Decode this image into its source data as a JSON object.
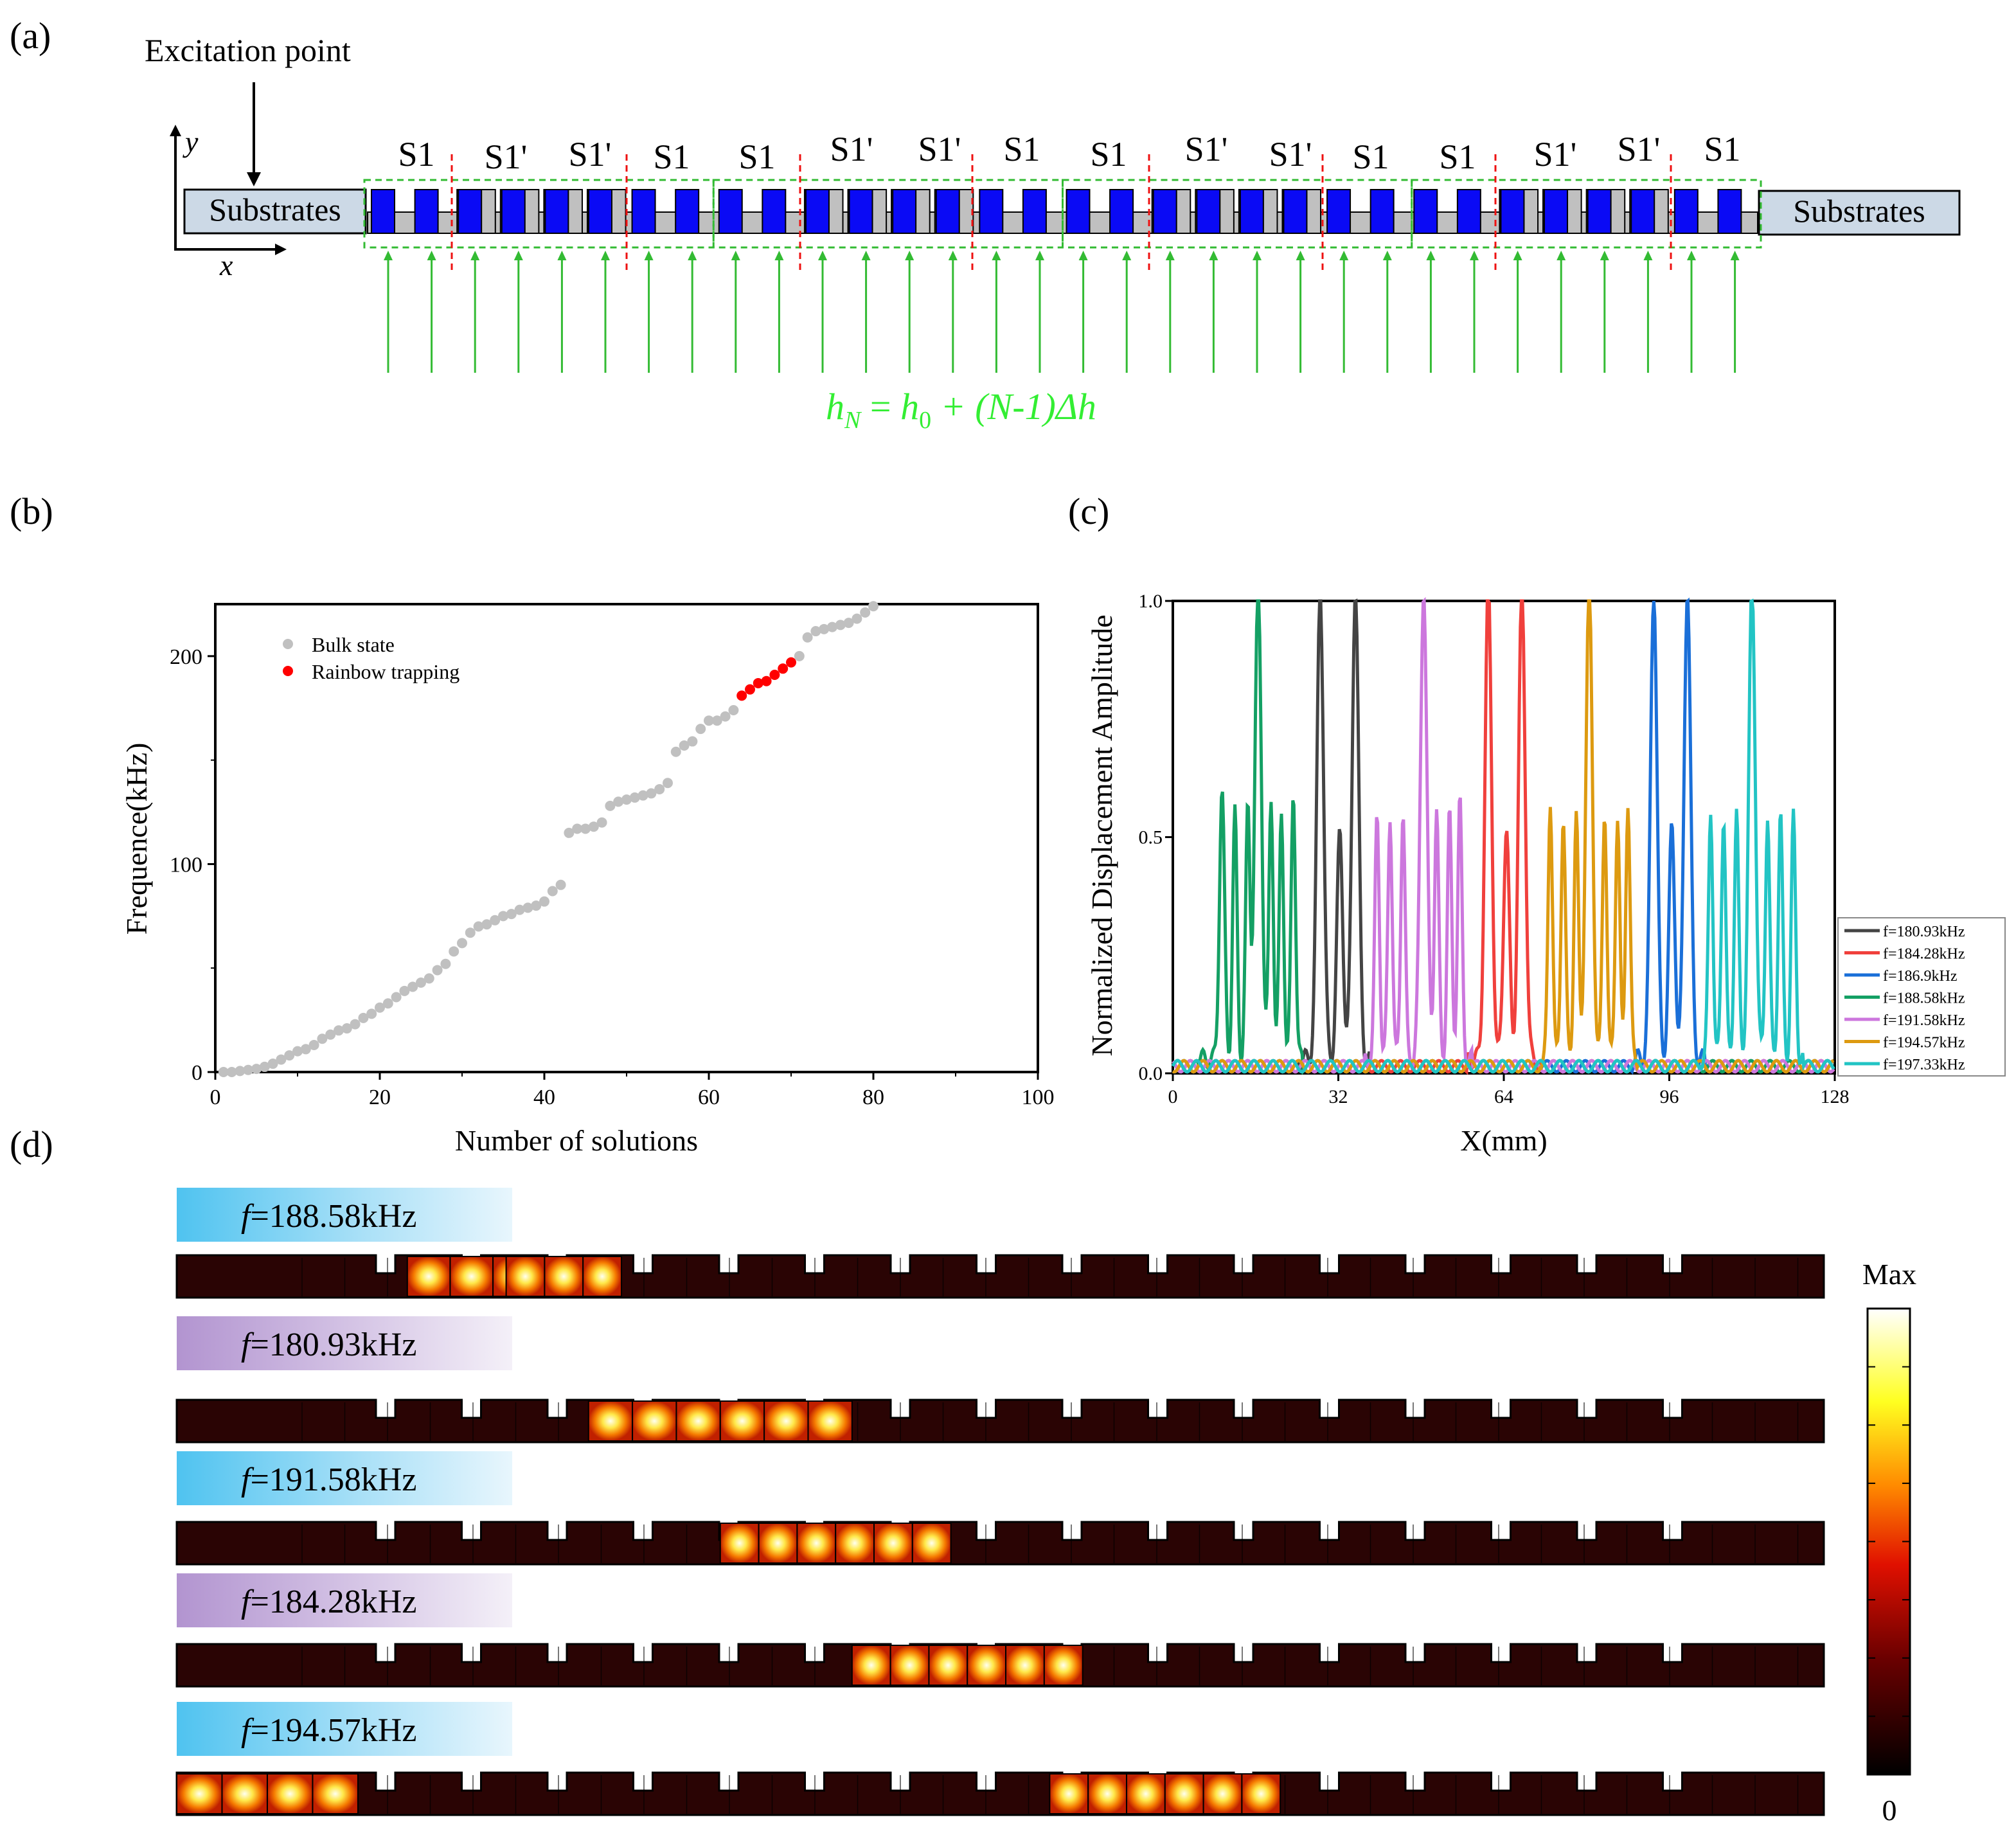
{
  "panels": {
    "a": {
      "label": "(a)",
      "excitation_label": "Excitation point",
      "axis_y": "y",
      "axis_x": "x",
      "substrate_left": "Substrates",
      "substrate_right": "Substrates",
      "segment_labels": [
        "S1",
        "S1'",
        "S1'",
        "S1",
        "S1",
        "S1'",
        "S1'",
        "S1",
        "S1",
        "S1'",
        "S1'",
        "S1",
        "S1",
        "S1'",
        "S1'",
        "S1"
      ],
      "formula": {
        "h": "h",
        "sub_N": "N",
        "eq": " = ",
        "h0": "h",
        "sub_0": "0",
        "rest": " + (N-1)Δh"
      },
      "colors": {
        "block": "#0a0af5",
        "gray": "#c0c0c0",
        "green": "#33bb33",
        "red_dash": "#ee1111",
        "formula": "#33ee33",
        "substrate": "#ccd9e6"
      }
    },
    "b": {
      "label": "(b)",
      "legend": [
        "Bulk state",
        "Rainbow trapping"
      ],
      "colors": {
        "bulk": "#c0c0c0",
        "rainbow": "#ff0000"
      }
    },
    "c": {
      "label": "(c)",
      "colors": [
        "#444444",
        "#f0403c",
        "#1a6fd8",
        "#14a064",
        "#cc77dd",
        "#dd9a10",
        "#22c4c4"
      ]
    },
    "d": {
      "label": "(d)",
      "colorbar_max": "Max",
      "colorbar_min": "0",
      "strips": [
        {
          "prefix": "f",
          "text": "=188.58kHz",
          "tag": "blue",
          "hot": [
            [
              0.14,
              0.27
            ],
            [
              0.2,
              0.27
            ]
          ]
        },
        {
          "prefix": "f",
          "text": "=180.93kHz",
          "tag": "purple",
          "hot": [
            [
              0.25,
              0.41
            ]
          ]
        },
        {
          "prefix": "f",
          "text": "=191.58kHz",
          "tag": "blue",
          "hot": [
            [
              0.33,
              0.47
            ]
          ]
        },
        {
          "prefix": "f",
          "text": "=184.28kHz",
          "tag": "purple",
          "hot": [
            [
              0.41,
              0.55
            ]
          ]
        },
        {
          "prefix": "f",
          "text": "=194.57kHz",
          "tag": "blue",
          "hot": [
            [
              0.0,
              0.11
            ],
            [
              0.53,
              0.67
            ]
          ]
        }
      ]
    }
  },
  "chart_data": [
    {
      "type": "scatter",
      "title": "",
      "xlabel": "Number of solutions",
      "ylabel": "Frequence(kHz)",
      "xlim": [
        0,
        100
      ],
      "ylim": [
        0,
        225
      ],
      "xticks": [
        0,
        20,
        40,
        60,
        80,
        100
      ],
      "yticks": [
        0,
        100,
        200
      ],
      "series": [
        {
          "name": "Bulk state",
          "x": [
            1,
            2,
            3,
            4,
            5,
            6,
            7,
            8,
            9,
            10,
            11,
            12,
            13,
            14,
            15,
            16,
            17,
            18,
            19,
            20,
            21,
            22,
            23,
            24,
            25,
            26,
            27,
            28,
            29,
            30,
            31,
            32,
            33,
            34,
            35,
            36,
            37,
            38,
            39,
            40,
            41,
            42,
            43,
            44,
            45,
            46,
            47,
            48,
            49,
            50,
            51,
            52,
            53,
            54,
            55,
            56,
            57,
            58,
            59,
            60,
            61,
            62,
            63,
            71,
            72,
            73,
            74,
            75,
            76,
            77,
            78,
            79,
            80
          ],
          "y": [
            0,
            0,
            0.5,
            1,
            1.5,
            2.5,
            4,
            6,
            8,
            10,
            11,
            13,
            16,
            18,
            20,
            21,
            23,
            26,
            28,
            31,
            33,
            36,
            39,
            41,
            43,
            45,
            49,
            52,
            58,
            62,
            67,
            70,
            71,
            73,
            75,
            76,
            78,
            79,
            80,
            82,
            87,
            90,
            115,
            117,
            117,
            118,
            120,
            128,
            130,
            131,
            132,
            133,
            134,
            136,
            139,
            154,
            157,
            159,
            165,
            169,
            169,
            171,
            174,
            200,
            209,
            212,
            213,
            214,
            215,
            216,
            218,
            221,
            224
          ]
        },
        {
          "name": "Rainbow trapping",
          "x": [
            64,
            65,
            66,
            67,
            68,
            69,
            70
          ],
          "y": [
            181,
            184,
            187,
            188,
            191,
            194,
            197
          ]
        }
      ]
    },
    {
      "type": "line",
      "title": "",
      "xlabel": "X(mm)",
      "ylabel": "Normalized Displacement Amplitude",
      "xlim": [
        0,
        128
      ],
      "ylim": [
        0,
        1
      ],
      "xticks": [
        0,
        32,
        64,
        96,
        128
      ],
      "yticks": [
        0.0,
        0.5,
        1.0
      ],
      "series": [
        {
          "name": "f=180.93kHz",
          "peaks": [
            [
              28.5,
              1.0,
              0.9
            ],
            [
              32.3,
              0.48,
              0.8
            ],
            [
              35.3,
              1.0,
              0.9
            ]
          ],
          "region": [
            24,
            38
          ]
        },
        {
          "name": "f=184.28kHz",
          "peaks": [
            [
              61,
              1.0,
              0.9
            ],
            [
              64.5,
              0.49,
              0.8
            ],
            [
              67.5,
              1.0,
              0.9
            ]
          ],
          "region": [
            57,
            71
          ]
        },
        {
          "name": "f=186.9kHz",
          "peaks": [
            [
              93,
              1.0,
              0.9
            ],
            [
              96.5,
              0.49,
              0.8
            ],
            [
              99.5,
              1.0,
              0.9
            ]
          ],
          "region": [
            89,
            103
          ]
        },
        {
          "name": "f=188.58kHz",
          "peaks": [
            [
              9.5,
              0.57,
              0.7
            ],
            [
              12,
              0.52,
              0.6
            ],
            [
              14.5,
              0.53,
              0.6
            ],
            [
              16.5,
              1.0,
              0.9
            ],
            [
              19,
              0.55,
              0.6
            ],
            [
              21,
              0.52,
              0.6
            ],
            [
              23.3,
              0.57,
              0.6
            ]
          ],
          "region": [
            5,
            25
          ]
        },
        {
          "name": "f=191.58kHz",
          "peaks": [
            [
              39.5,
              0.52,
              0.6
            ],
            [
              42,
              0.52,
              0.6
            ],
            [
              44.5,
              0.53,
              0.6
            ],
            [
              48.5,
              1.0,
              0.9
            ],
            [
              51,
              0.53,
              0.6
            ],
            [
              53.5,
              0.52,
              0.6
            ],
            [
              55.5,
              0.55,
              0.6
            ]
          ],
          "region": [
            37,
            58
          ]
        },
        {
          "name": "f=194.57kHz",
          "peaks": [
            [
              73,
              0.55,
              0.6
            ],
            [
              75.5,
              0.52,
              0.6
            ],
            [
              78,
              0.52,
              0.6
            ],
            [
              80.5,
              1.0,
              0.9
            ],
            [
              83.5,
              0.53,
              0.6
            ],
            [
              86,
              0.52,
              0.6
            ],
            [
              88,
              0.55,
              0.6
            ]
          ],
          "region": [
            71,
            90
          ]
        },
        {
          "name": "f=197.33kHz",
          "peaks": [
            [
              104,
              0.53,
              0.6
            ],
            [
              106.5,
              0.52,
              0.6
            ],
            [
              109,
              0.53,
              0.6
            ],
            [
              112,
              1.0,
              0.9
            ],
            [
              115,
              0.52,
              0.6
            ],
            [
              117.5,
              0.52,
              0.6
            ],
            [
              120,
              0.51,
              0.6
            ]
          ],
          "region": [
            102,
            122
          ]
        }
      ]
    }
  ]
}
